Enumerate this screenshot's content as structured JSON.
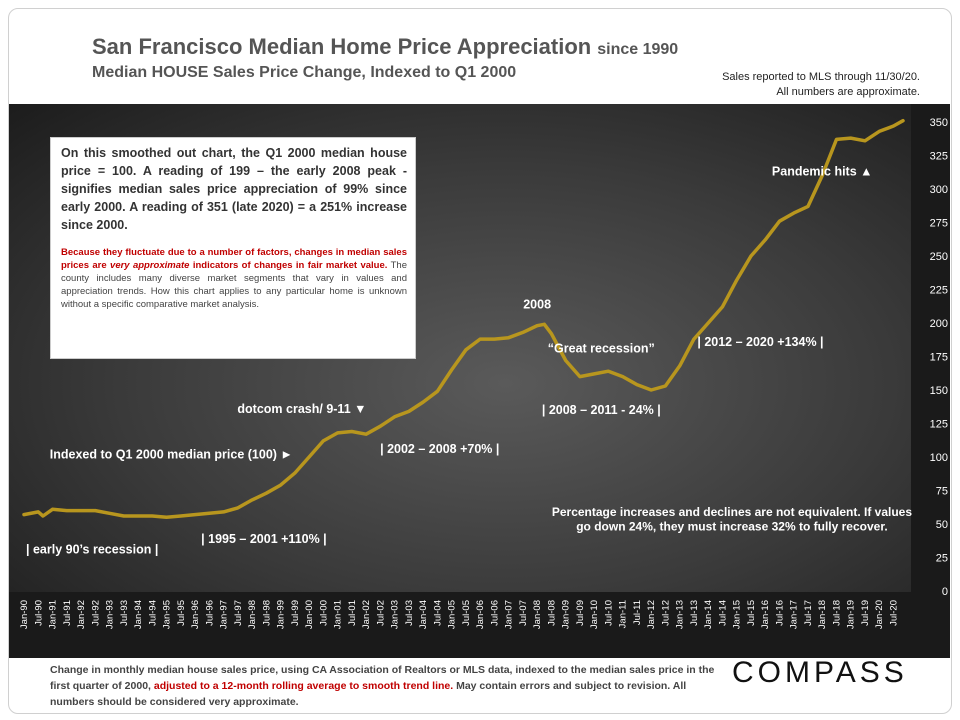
{
  "header": {
    "title": "San Francisco Median Home Price Appreciation",
    "title_suffix": "since 1990",
    "subtitle": "Median HOUSE Sales Price Change, Indexed to Q1 2000",
    "source_line1": "Sales reported to MLS through 11/30/20.",
    "source_line2": "All numbers are approximate."
  },
  "infobox": {
    "main": "On this smoothed out chart, the Q1 2000 median house price = 100. A reading of 199 – the early 2008 peak - signifies median sales price appreciation of 99% since early 2000.  A reading of 351 (late  2020) = a 251% increase since 2000.",
    "note_red": "Because they fluctuate due to a number of factors, changes in median sales prices are ",
    "note_red_italic": "very approximate",
    "note_red_end": " indicators of changes in fair market value.",
    "note_rest": " The county includes many diverse market segments that vary in values and appreciation trends. How this chart applies to any particular home is unknown without a specific comparative market analysis."
  },
  "footer": {
    "text1": "Change in monthly median house sales price, using CA Association of Realtors or MLS data, indexed to the median sales price in the first quarter of 2000, ",
    "text_red": "adjusted to a 12-month rolling average to smooth trend line.",
    "text2": "  May contain errors and subject to revision. All numbers should be considered very approximate."
  },
  "logo": "COMPASS",
  "colors": {
    "line": "#b8961e",
    "background": "#3a3a3a",
    "text": "#ffffff",
    "red": "#c00000"
  },
  "chart_data": {
    "type": "line",
    "title": "San Francisco Median Home Price Appreciation since 1990",
    "ylabel": "",
    "xlabel": "",
    "ylim": [
      0,
      350
    ],
    "yticks": [
      0,
      25,
      50,
      75,
      100,
      125,
      150,
      175,
      200,
      225,
      250,
      275,
      300,
      325,
      350
    ],
    "xlim": [
      "1990-01",
      "2020-11"
    ],
    "x_tick_labels": [
      "Jan-90",
      "Jul-90",
      "Jan-91",
      "Jul-91",
      "Jan-92",
      "Jul-92",
      "Jan-93",
      "Jul-93",
      "Jan-94",
      "Jul-94",
      "Jan-95",
      "Jul-95",
      "Jan-96",
      "Jul-96",
      "Jan-97",
      "Jul-97",
      "Jan-98",
      "Jul-98",
      "Jan-99",
      "Jul-99",
      "Jan-00",
      "Jul-00",
      "Jan-01",
      "Jul-01",
      "Jan-02",
      "Jul-02",
      "Jan-03",
      "Jul-03",
      "Jan-04",
      "Jul-04",
      "Jan-05",
      "Jul-05",
      "Jan-06",
      "Jul-06",
      "Jan-07",
      "Jul-07",
      "Jan-08",
      "Jul-08",
      "Jan-09",
      "Jul-09",
      "Jan-10",
      "Jul-10",
      "Jan-11",
      "Jul-11",
      "Jan-12",
      "Jul-12",
      "Jan-13",
      "Jul-13",
      "Jan-14",
      "Jul-14",
      "Jan-15",
      "Jul-15",
      "Jan-16",
      "Jul-16",
      "Jan-17",
      "Jul-17",
      "Jan-18",
      "Jul-18",
      "Jan-19",
      "Jul-19",
      "Jan-20",
      "Jul-20"
    ],
    "grid": false,
    "series": [
      {
        "points": [
          [
            "1990-01",
            57
          ],
          [
            "1990-07",
            59
          ],
          [
            "1990-09",
            56
          ],
          [
            "1991-01",
            61
          ],
          [
            "1991-07",
            60
          ],
          [
            "1992-01",
            60
          ],
          [
            "1992-07",
            60
          ],
          [
            "1993-01",
            58
          ],
          [
            "1993-07",
            56
          ],
          [
            "1994-01",
            56
          ],
          [
            "1994-07",
            56
          ],
          [
            "1995-01",
            55
          ],
          [
            "1995-07",
            56
          ],
          [
            "1996-01",
            57
          ],
          [
            "1996-07",
            58
          ],
          [
            "1997-01",
            59
          ],
          [
            "1997-07",
            62
          ],
          [
            "1998-01",
            68
          ],
          [
            "1998-07",
            73
          ],
          [
            "1999-01",
            79
          ],
          [
            "1999-07",
            88
          ],
          [
            "2000-01",
            100
          ],
          [
            "2000-07",
            112
          ],
          [
            "2001-01",
            118
          ],
          [
            "2001-07",
            119
          ],
          [
            "2002-01",
            117
          ],
          [
            "2002-07",
            123
          ],
          [
            "2003-01",
            130
          ],
          [
            "2003-07",
            134
          ],
          [
            "2004-01",
            141
          ],
          [
            "2004-07",
            149
          ],
          [
            "2005-01",
            165
          ],
          [
            "2005-07",
            180
          ],
          [
            "2006-01",
            188
          ],
          [
            "2006-07",
            188
          ],
          [
            "2007-01",
            189
          ],
          [
            "2007-07",
            193
          ],
          [
            "2008-01",
            198
          ],
          [
            "2008-04",
            199
          ],
          [
            "2008-07",
            192
          ],
          [
            "2009-01",
            172
          ],
          [
            "2009-07",
            160
          ],
          [
            "2010-01",
            162
          ],
          [
            "2010-07",
            164
          ],
          [
            "2011-01",
            160
          ],
          [
            "2011-07",
            154
          ],
          [
            "2012-01",
            150
          ],
          [
            "2012-07",
            153
          ],
          [
            "2013-01",
            168
          ],
          [
            "2013-07",
            188
          ],
          [
            "2014-01",
            200
          ],
          [
            "2014-07",
            212
          ],
          [
            "2015-01",
            232
          ],
          [
            "2015-07",
            250
          ],
          [
            "2016-01",
            262
          ],
          [
            "2016-07",
            276
          ],
          [
            "2017-01",
            282
          ],
          [
            "2017-07",
            287
          ],
          [
            "2018-01",
            310
          ],
          [
            "2018-07",
            337
          ],
          [
            "2019-01",
            338
          ],
          [
            "2019-07",
            336
          ],
          [
            "2020-01",
            343
          ],
          [
            "2020-07",
            347
          ],
          [
            "2020-11",
            351
          ]
        ]
      }
    ],
    "annotations": [
      {
        "id": "early90",
        "text": "| early 90’s recession |",
        "x": "1992-01",
        "y": 28
      },
      {
        "id": "p1995",
        "text": "| 1995  – 2001  +110% |",
        "x": "1998-06",
        "y": 36
      },
      {
        "id": "indexed",
        "text": "Indexed to Q1 2000 median price (100) ►",
        "x": "1995-03",
        "y": 99
      },
      {
        "id": "dotcom",
        "text": "dotcom crash/ 9-11  ▼",
        "x": "1999-10",
        "y": 133
      },
      {
        "id": "p2002",
        "text": "| 2002  – 2008  +70% |",
        "x": "2004-08",
        "y": 103
      },
      {
        "id": "y2008",
        "text": "2008",
        "x": "2008-01",
        "y": 211
      },
      {
        "id": "great",
        "text": "“Great recession”",
        "x": "2010-04",
        "y": 178
      },
      {
        "id": "p2008",
        "text": "| 2008  – 2011  - 24% |",
        "x": "2010-04",
        "y": 132
      },
      {
        "id": "p2012",
        "text": "| 2012  – 2020  +134% |",
        "x": "2015-11",
        "y": 183
      },
      {
        "id": "pandemic",
        "text": "Pandemic hits ▲",
        "x": "2018-01",
        "y": 310
      },
      {
        "id": "pct1",
        "text": "Percentage increases and declines are not equivalent. If values",
        "x": "2014-11",
        "y": 56
      },
      {
        "id": "pct2",
        "text": "go down 24%, they must increase 32% to fully recover.",
        "x": "2014-11",
        "y": 45
      }
    ]
  }
}
